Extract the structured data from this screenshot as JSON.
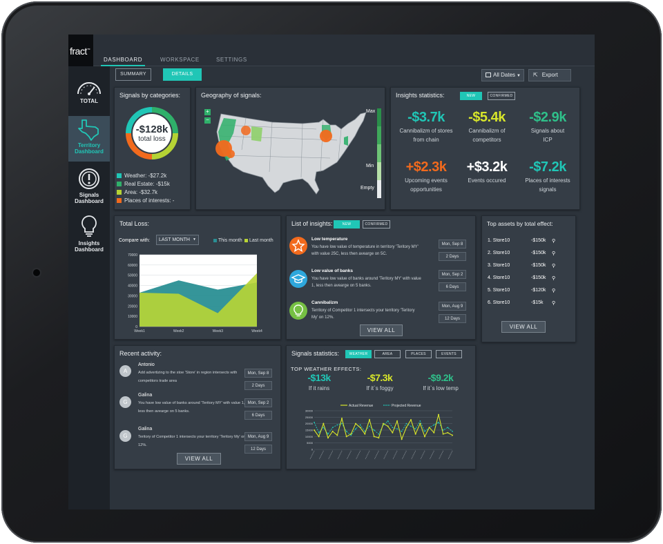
{
  "app": {
    "logo": "fract",
    "logo_mark": "™"
  },
  "nav": {
    "tabs": [
      {
        "label": "DASHBOARD"
      },
      {
        "label": "WORKSPACE"
      },
      {
        "label": "SETTINGS"
      }
    ]
  },
  "sidebar": {
    "items": [
      {
        "label": "TOTAL",
        "icon": "speedometer-icon"
      },
      {
        "label1": "Territory",
        "label2": "Dashboard",
        "icon": "texas-map-icon"
      },
      {
        "label1": "Signals",
        "label2": "Dashboard",
        "icon": "exclamation-circle-icon"
      },
      {
        "label1": "Insights",
        "label2": "Dashboard",
        "icon": "lightbulb-icon"
      }
    ]
  },
  "toolbar": {
    "summary": "SUMMARY",
    "details": "DETAILS",
    "dates": "All Dates",
    "export": "Export"
  },
  "categories": {
    "title": "Signals by categories:",
    "total_value": "-$128k",
    "total_label": "total loss",
    "legend": [
      {
        "text": "Weather: -$27.2k",
        "color": "#20c6b6"
      },
      {
        "text": "Real Estate: -$15k",
        "color": "#2fb06a"
      },
      {
        "text": "Area: -$32.7k",
        "color": "#b5d334"
      },
      {
        "text": "Places of interests: -",
        "color": "#f26a1d"
      }
    ]
  },
  "geo": {
    "title": "Geography of signals:",
    "zoom_in": "+",
    "zoom_out": "−",
    "scale_max": "Max",
    "scale_min": "Min",
    "scale_empty": "Empty"
  },
  "insights_stats": {
    "title": "Insights statistics:",
    "pill_new": "NEW",
    "pill_confirmed": "CONFIRMED",
    "stats": [
      {
        "value": "-$3.7k",
        "label1": "Cannibalizm of stores",
        "label2": "from chain",
        "color": "#20c6b6"
      },
      {
        "value": "-$5.4k",
        "label1": "Cannibalizm of",
        "label2": "competitors",
        "color": "#d8e62a"
      },
      {
        "value": "-$2.9k",
        "label1": "Signals about",
        "label2": "ICP",
        "color": "#2fc08a"
      },
      {
        "value": "+$2.3k",
        "label1": "Upcoming events",
        "label2": "opportunities",
        "color": "#f26a1d"
      },
      {
        "value": "+$3.2k",
        "label1": "Events occured",
        "label2": "",
        "color": "#ffffff"
      },
      {
        "value": "-$7.2k",
        "label1": "Places of interests",
        "label2": "signals",
        "color": "#20c6b6"
      }
    ]
  },
  "total_loss": {
    "title": "Total Loss:",
    "compare_label": "Compare with:",
    "compare_value": "LAST MONTH",
    "legend_this": "This month",
    "legend_last": "Last month"
  },
  "chart_data": [
    {
      "type": "area",
      "categories": [
        "Week1",
        "Week2",
        "Week3",
        "Week4"
      ],
      "yticks": [
        "70000",
        "60000",
        "50000",
        "40000",
        "30000",
        "20000",
        "10000",
        "0"
      ],
      "ylim": [
        0,
        70000
      ],
      "series": [
        {
          "name": "This month",
          "values": [
            33000,
            45000,
            36000,
            43000
          ],
          "color": "#2a8f94"
        },
        {
          "name": "Last month",
          "values": [
            33000,
            32000,
            13000,
            52000
          ],
          "color": "#b9d534"
        }
      ]
    },
    {
      "type": "line",
      "series_names": [
        "Actual Revenue",
        "Projected Revenue"
      ],
      "yticks": [
        "30000",
        "25000",
        "20000",
        "15000",
        "10000",
        "5000",
        "0"
      ],
      "ylim": [
        0,
        30000
      ],
      "actual": [
        15000,
        10000,
        20000,
        9000,
        14000,
        11000,
        24000,
        10000,
        12000,
        20000,
        17000,
        12000,
        23000,
        10000,
        9000,
        20000,
        18000,
        13000,
        22000,
        8000,
        17000,
        23000,
        12000,
        20000,
        10000,
        17000,
        13000,
        27000,
        12000,
        13000,
        11000
      ],
      "projected": [
        21000,
        13000,
        17000,
        12000,
        17000,
        19000,
        20000,
        14000,
        11000,
        16000,
        19000,
        14000,
        18000,
        15000,
        12000,
        19000,
        22000,
        17000,
        16000,
        14000,
        20000,
        18000,
        16000,
        22000,
        14000,
        17000,
        19000,
        21000,
        15000,
        17000,
        14000
      ]
    }
  ],
  "list_insights": {
    "title": "List of insights:",
    "pill_new": "NEW",
    "pill_confirmed": "CONFIRMED",
    "items": [
      {
        "title": "Low temperature",
        "desc": "You have low value of temperature in territory 'Teritory MY' with value 25C, less then avearge on 5C.",
        "date": "Mon, Sep 8",
        "days": "2 Days",
        "icon": "star-icon",
        "color": "#f26a1d"
      },
      {
        "title": "Low value of banks",
        "desc": "You have low value of banks around 'Teritory MY' with value 1, less then avearge on 5 banks.",
        "date": "Mon, Sep 2",
        "days": "6 Days",
        "icon": "graduation-cap-icon",
        "color": "#2ea7dc"
      },
      {
        "title": "Cannibalizm",
        "desc": "Territory of Competitor 1 intersects your territory 'Teritory My' on 12%.",
        "date": "Mon, Aug 9",
        "days": "12 Days",
        "icon": "lightbulb-icon",
        "color": "#75c043"
      }
    ],
    "view_all": "VIEW ALL"
  },
  "assets": {
    "title": "Top assets by total effect:",
    "rows": [
      {
        "name": "1. Store10",
        "value": "-$150k"
      },
      {
        "name": "2. Store10",
        "value": "-$150k"
      },
      {
        "name": "3. Store10",
        "value": "-$150k"
      },
      {
        "name": "4. Store10",
        "value": "-$150k"
      },
      {
        "name": "5. Store10",
        "value": "-$120k"
      },
      {
        "name": "6. Store10",
        "value": "-$15k"
      }
    ],
    "view_all": "VIEW ALL"
  },
  "activity": {
    "title": "Recent activity:",
    "items": [
      {
        "initial": "A",
        "name": "Antonio",
        "desc": "Add advertizing to the stoe 'Store' in region intersects with competitors trade area",
        "date": "Mon, Sep 8",
        "days": "2 Days"
      },
      {
        "initial": "G",
        "name": "Galina",
        "desc": "You have low value of banks around 'Teritory MY' with value 1, less then avearge on 5 banks.",
        "date": "Mon, Sep 2",
        "days": "6 Days"
      },
      {
        "initial": "G",
        "name": "Galina",
        "desc": "Teritory of Competitor 1 intersects your territory 'Teritory My' on 12%.",
        "date": "Mon, Aug 9",
        "days": "12 Days"
      }
    ],
    "view_all": "VIEW ALL"
  },
  "signals_stats": {
    "title": "Signals statistics:",
    "tabs": [
      "WEATHER",
      "AREA",
      "PLACES",
      "EVENTS"
    ],
    "subtitle": "TOP WEATHER EFFECTS:",
    "effects": [
      {
        "value": "-$13k",
        "label": "If it rains",
        "color": "#20c6b6"
      },
      {
        "value": "-$7.3k",
        "label": "If it`s foggy",
        "color": "#d8e62a"
      },
      {
        "value": "-$9.2k",
        "label": "If it`s low temp",
        "color": "#2fc08a"
      }
    ]
  }
}
